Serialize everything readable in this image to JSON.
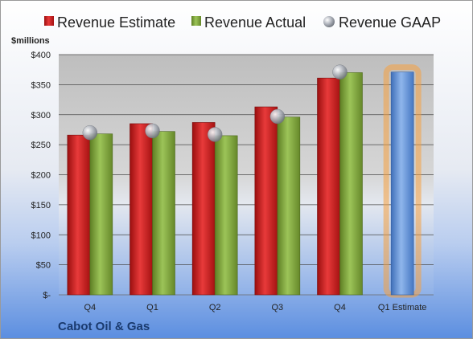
{
  "chart_data": {
    "type": "bar",
    "categories": [
      "Q4",
      "Q1",
      "Q2",
      "Q3",
      "Q4",
      "Q1 Estimate"
    ],
    "series": [
      {
        "name": "Revenue Estimate",
        "values": [
          266,
          285,
          287,
          313,
          361,
          null
        ],
        "color": "#d42020"
      },
      {
        "name": "Revenue Actual",
        "values": [
          268,
          272,
          265,
          296,
          370,
          371
        ],
        "color": "#80a83a",
        "last_color": "#6f9fd8"
      },
      {
        "name": "Revenue GAAP",
        "type": "scatter",
        "values": [
          270,
          273,
          267,
          297,
          371,
          null
        ],
        "color": "#b0b4bc"
      }
    ],
    "ylabel": "$millions",
    "ylim": [
      0,
      400
    ],
    "yticks": [
      0,
      50,
      100,
      150,
      200,
      250,
      300,
      350,
      400
    ],
    "ytick_labels": [
      "$-",
      "$50",
      "$100",
      "$150",
      "$200",
      "$250",
      "$300",
      "$350",
      "$400"
    ],
    "legend_position": "top",
    "grid": true,
    "highlight_color": "#f5a040",
    "footer": "Cabot Oil & Gas"
  }
}
